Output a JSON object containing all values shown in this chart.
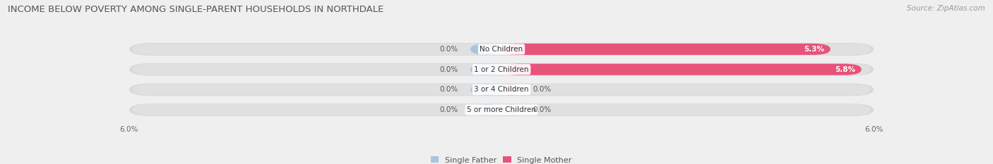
{
  "title": "INCOME BELOW POVERTY AMONG SINGLE-PARENT HOUSEHOLDS IN NORTHDALE",
  "source": "Source: ZipAtlas.com",
  "categories": [
    "No Children",
    "1 or 2 Children",
    "3 or 4 Children",
    "5 or more Children"
  ],
  "single_father_values": [
    0.0,
    0.0,
    0.0,
    0.0
  ],
  "single_mother_values": [
    5.3,
    5.8,
    0.0,
    0.0
  ],
  "father_color": "#a8c4de",
  "mother_color": "#e8537a",
  "mother_color_light": "#f0a0bc",
  "axis_max": 6.0,
  "axis_min": 6.0,
  "bg_color": "#efefef",
  "bar_bg_color": "#e0e0e0",
  "bar_bg_outer": "#d8d8d8",
  "title_fontsize": 9.5,
  "source_fontsize": 7.5,
  "cat_label_fontsize": 7.5,
  "val_label_fontsize": 7.5,
  "legend_fontsize": 8,
  "father_stub": 0.5,
  "mother_stub": 0.3
}
